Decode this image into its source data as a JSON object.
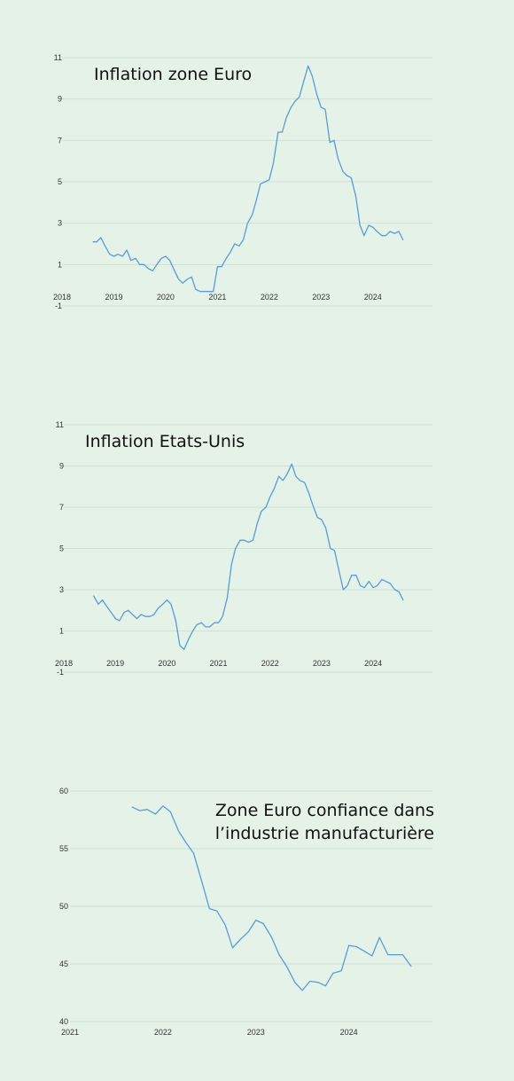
{
  "colors": {
    "background": "#e4f2e8",
    "line": "#5b9bd5",
    "grid": "#cfe0d4"
  },
  "chart_data": [
    {
      "type": "line",
      "title": "Inflation zone Euro",
      "ylim": [
        -1,
        11
      ],
      "xlim": [
        2018,
        2025.15
      ],
      "y_ticks": [
        "11",
        "9",
        "7",
        "5",
        "3",
        "1",
        "-1"
      ],
      "x_ticks": [
        "2018",
        "2019",
        "2020",
        "2021",
        "2022",
        "2023",
        "2024"
      ],
      "grid": true,
      "series": [
        {
          "x": [
            2018.6,
            2018.67,
            2018.75,
            2018.83,
            2018.92,
            2019.0,
            2019.08,
            2019.17,
            2019.25,
            2019.33,
            2019.42,
            2019.5,
            2019.58,
            2019.67,
            2019.75,
            2019.83,
            2019.92,
            2020.0,
            2020.08,
            2020.17,
            2020.25,
            2020.33,
            2020.42,
            2020.5,
            2020.58,
            2020.67,
            2020.75,
            2020.83,
            2020.92,
            2021.0,
            2021.08,
            2021.17,
            2021.25,
            2021.33,
            2021.42,
            2021.5,
            2021.58,
            2021.67,
            2021.75,
            2021.83,
            2021.92,
            2022.0,
            2022.08,
            2022.17,
            2022.25,
            2022.33,
            2022.42,
            2022.5,
            2022.58,
            2022.67,
            2022.75,
            2022.83,
            2022.92,
            2023.0,
            2023.08,
            2023.17,
            2023.25,
            2023.33,
            2023.42,
            2023.5,
            2023.58,
            2023.67,
            2023.75,
            2023.83,
            2023.92,
            2024.0,
            2024.08,
            2024.17,
            2024.25,
            2024.33,
            2024.42,
            2024.5,
            2024.58
          ],
          "values": [
            2.1,
            2.1,
            2.3,
            1.9,
            1.5,
            1.4,
            1.5,
            1.4,
            1.7,
            1.2,
            1.3,
            1.0,
            1.0,
            0.8,
            0.7,
            1.0,
            1.3,
            1.4,
            1.2,
            0.7,
            0.3,
            0.1,
            0.3,
            0.4,
            -0.2,
            -0.3,
            -0.3,
            -0.3,
            -0.3,
            0.9,
            0.9,
            1.3,
            1.6,
            2.0,
            1.9,
            2.2,
            3.0,
            3.4,
            4.1,
            4.9,
            5.0,
            5.1,
            5.9,
            7.4,
            7.4,
            8.1,
            8.6,
            8.9,
            9.1,
            9.9,
            10.6,
            10.1,
            9.2,
            8.6,
            8.5,
            6.9,
            7.0,
            6.1,
            5.5,
            5.3,
            5.2,
            4.3,
            2.9,
            2.4,
            2.9,
            2.8,
            2.6,
            2.4,
            2.4,
            2.6,
            2.5,
            2.6,
            2.2
          ]
        }
      ]
    },
    {
      "type": "line",
      "title": "Inflation Etats-Unis",
      "ylim": [
        -1,
        11
      ],
      "xlim": [
        2018,
        2025.15
      ],
      "y_ticks": [
        "11",
        "9",
        "7",
        "5",
        "3",
        "1",
        "-1"
      ],
      "x_ticks": [
        "2018",
        "2019",
        "2020",
        "2021",
        "2022",
        "2023",
        "2024"
      ],
      "grid": true,
      "series": [
        {
          "x": [
            2018.58,
            2018.67,
            2018.75,
            2018.83,
            2018.92,
            2019.0,
            2019.08,
            2019.17,
            2019.25,
            2019.33,
            2019.42,
            2019.5,
            2019.58,
            2019.67,
            2019.75,
            2019.83,
            2019.92,
            2020.0,
            2020.08,
            2020.17,
            2020.25,
            2020.33,
            2020.42,
            2020.5,
            2020.58,
            2020.67,
            2020.75,
            2020.83,
            2020.92,
            2021.0,
            2021.08,
            2021.17,
            2021.25,
            2021.33,
            2021.42,
            2021.5,
            2021.58,
            2021.67,
            2021.75,
            2021.83,
            2021.92,
            2022.0,
            2022.08,
            2022.17,
            2022.25,
            2022.33,
            2022.42,
            2022.5,
            2022.58,
            2022.67,
            2022.75,
            2022.83,
            2022.92,
            2023.0,
            2023.08,
            2023.17,
            2023.25,
            2023.33,
            2023.42,
            2023.5,
            2023.58,
            2023.67,
            2023.75,
            2023.83,
            2023.92,
            2024.0,
            2024.08,
            2024.17,
            2024.25,
            2024.33,
            2024.42,
            2024.5,
            2024.58
          ],
          "values": [
            2.7,
            2.3,
            2.5,
            2.2,
            1.9,
            1.6,
            1.5,
            1.9,
            2.0,
            1.8,
            1.6,
            1.8,
            1.7,
            1.7,
            1.8,
            2.1,
            2.3,
            2.5,
            2.3,
            1.5,
            0.3,
            0.1,
            0.6,
            1.0,
            1.3,
            1.4,
            1.2,
            1.2,
            1.4,
            1.4,
            1.7,
            2.6,
            4.2,
            5.0,
            5.4,
            5.4,
            5.3,
            5.4,
            6.2,
            6.8,
            7.0,
            7.5,
            7.9,
            8.5,
            8.3,
            8.6,
            9.1,
            8.5,
            8.3,
            8.2,
            7.7,
            7.1,
            6.5,
            6.4,
            6.0,
            5.0,
            4.9,
            4.0,
            3.0,
            3.2,
            3.7,
            3.7,
            3.2,
            3.1,
            3.4,
            3.1,
            3.2,
            3.5,
            3.4,
            3.3,
            3.0,
            2.9,
            2.5
          ]
        }
      ]
    },
    {
      "type": "line",
      "title_lines": [
        "Zone Euro confiance dans",
        "l’industrie manufacturière"
      ],
      "ylim": [
        40,
        60
      ],
      "xlim": [
        2021,
        2024.9
      ],
      "y_ticks": [
        "60",
        "55",
        "50",
        "45",
        "40"
      ],
      "x_ticks": [
        "2021",
        "2022",
        "2023",
        "2024"
      ],
      "grid": true,
      "series": [
        {
          "x": [
            2021.67,
            2021.75,
            2021.83,
            2021.92,
            2022.0,
            2022.08,
            2022.17,
            2022.25,
            2022.33,
            2022.42,
            2022.5,
            2022.58,
            2022.67,
            2022.75,
            2022.83,
            2022.92,
            2023.0,
            2023.08,
            2023.17,
            2023.25,
            2023.33,
            2023.42,
            2023.5,
            2023.58,
            2023.67,
            2023.75,
            2023.83,
            2023.92,
            2024.0,
            2024.08,
            2024.17,
            2024.25,
            2024.33,
            2024.42,
            2024.5,
            2024.58,
            2024.67
          ],
          "values": [
            58.6,
            58.3,
            58.4,
            58.0,
            58.7,
            58.2,
            56.5,
            55.5,
            54.6,
            52.1,
            49.8,
            49.6,
            48.4,
            46.4,
            47.1,
            47.8,
            48.8,
            48.5,
            47.3,
            45.8,
            44.8,
            43.4,
            42.7,
            43.5,
            43.4,
            43.1,
            44.2,
            44.4,
            46.6,
            46.5,
            46.1,
            45.7,
            47.3,
            45.8,
            45.8,
            45.8,
            44.8
          ]
        }
      ]
    }
  ]
}
